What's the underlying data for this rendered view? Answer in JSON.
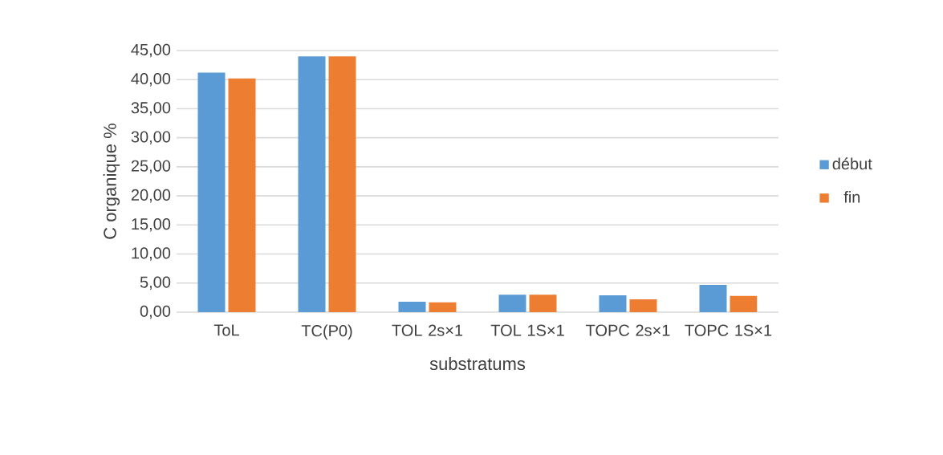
{
  "chart_data": {
    "type": "bar",
    "xlabel": "substratums",
    "ylabel": "C organique %",
    "categories": [
      "ToL",
      "TC(P0)",
      "TOL 2s×1",
      "TOL 1S×1",
      "TOPC 2s×1",
      "TOPC 1S×1"
    ],
    "series": [
      {
        "name": "début",
        "color": "#5b9bd5",
        "values": [
          41.2,
          44.0,
          1.8,
          3.0,
          2.9,
          4.7
        ]
      },
      {
        "name": "fin",
        "color": "#ed7d31",
        "values": [
          40.2,
          44.0,
          1.7,
          3.0,
          2.2,
          2.8
        ]
      }
    ],
    "ylim": [
      0,
      45
    ],
    "yticks": [
      {
        "value": 0,
        "label": "0,00"
      },
      {
        "value": 5,
        "label": "5,00"
      },
      {
        "value": 10,
        "label": "10,00"
      },
      {
        "value": 15,
        "label": "15,00"
      },
      {
        "value": 20,
        "label": "20,00"
      },
      {
        "value": 25,
        "label": "25,00"
      },
      {
        "value": 30,
        "label": "30,00"
      },
      {
        "value": 35,
        "label": "35,00"
      },
      {
        "value": 40,
        "label": "40,00"
      },
      {
        "value": 45,
        "label": "45,00"
      }
    ],
    "grid": "y",
    "legend": "right"
  }
}
